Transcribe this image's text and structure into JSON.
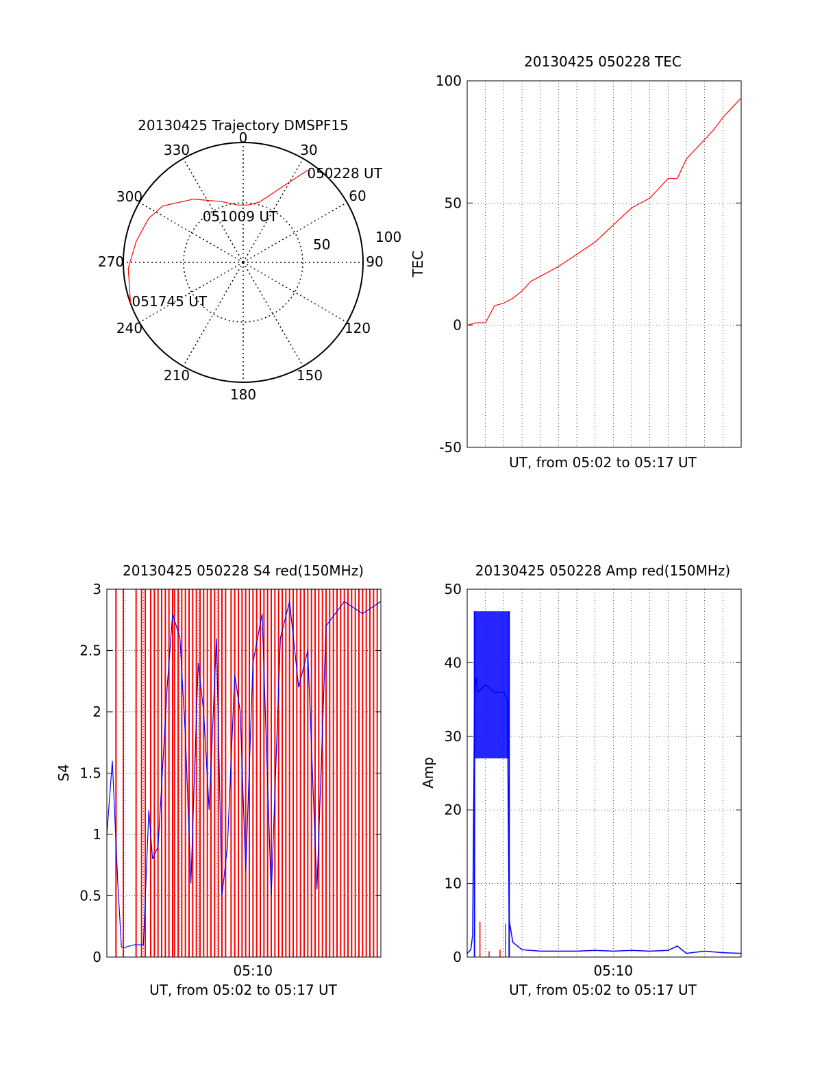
{
  "chart_data": [
    {
      "type": "polar-trajectory",
      "title": "20130425 Trajectory DMSPF15",
      "angle_labels": [
        "0",
        "30",
        "60",
        "90",
        "120",
        "150",
        "180",
        "210",
        "240",
        "270",
        "300",
        "330"
      ],
      "radial_labels": [
        "50",
        "100"
      ],
      "radial_max": 100,
      "track": {
        "color": "#ff0000",
        "points": [
          {
            "az": 35,
            "r": 94
          },
          {
            "az": 25,
            "r": 66
          },
          {
            "az": 15,
            "r": 52
          },
          {
            "az": 5,
            "r": 48
          },
          {
            "az": -5,
            "r": 48
          },
          {
            "az": -20,
            "r": 54
          },
          {
            "az": -38,
            "r": 67
          },
          {
            "az": -55,
            "r": 82
          },
          {
            "az": -65,
            "r": 87
          },
          {
            "az": -79,
            "r": 91
          },
          {
            "az": -93,
            "r": 96
          },
          {
            "az": -110,
            "r": 100
          }
        ]
      },
      "annotations": [
        {
          "text": "050228 UT",
          "az": 35,
          "r": 94
        },
        {
          "text": "051009 UT",
          "az": -3,
          "r": 47
        },
        {
          "text": "051745 UT",
          "az": -110,
          "r": 100
        }
      ]
    },
    {
      "type": "line",
      "title": "20130425 050228 TEC",
      "xlabel": "UT, from 05:02 to 05:17 UT",
      "ylabel": "TEC",
      "ylim": [
        -50,
        100
      ],
      "yticks": [
        "100",
        "50",
        "0",
        "-50"
      ],
      "xlim": [
        0,
        15
      ],
      "grid": true,
      "series": [
        {
          "color": "#ff0000",
          "x": [
            0,
            0.5,
            1.0,
            1.5,
            2,
            2.5,
            3,
            3.5,
            4,
            5,
            6,
            7,
            8,
            9,
            10,
            10.5,
            11,
            11.5,
            12,
            12.5,
            13,
            13.5,
            14,
            14.5,
            15
          ],
          "y": [
            0,
            1,
            1,
            8,
            9,
            11,
            14,
            18,
            20,
            24,
            29,
            34,
            41,
            48,
            52,
            56,
            60,
            60,
            68,
            72,
            76,
            80,
            85,
            89,
            93
          ]
        }
      ]
    },
    {
      "type": "line",
      "title": "20130425 050228 S4 red(150MHz)",
      "xlabel": "UT, from 05:02 to 05:17 UT",
      "ylabel": "S4",
      "ylim": [
        0,
        3
      ],
      "yticks": [
        "3",
        "2.5",
        "2",
        "1.5",
        "1",
        "0.5",
        "0"
      ],
      "xtick_labels": [
        {
          "x": 8,
          "label": "05:10"
        }
      ],
      "xlim": [
        0,
        15
      ],
      "grid": true,
      "series": [
        {
          "color": "#0000ff",
          "x": [
            0,
            0.3,
            0.6,
            0.8,
            1.0,
            1.5,
            2.0,
            2.3,
            2.5,
            2.8,
            3.0,
            3.3,
            3.6,
            4.0,
            4.3,
            4.6,
            5.0,
            5.3,
            5.6,
            6.0,
            6.3,
            6.6,
            7.0,
            7.3,
            7.6,
            8.0,
            8.5,
            9.0,
            9.5,
            10.0,
            10.5,
            11.0,
            11.5,
            12.0,
            13.0,
            14.0,
            15.0
          ],
          "y": [
            1.0,
            1.6,
            0.6,
            0.08,
            0.08,
            0.1,
            0.1,
            1.2,
            0.8,
            0.9,
            1.4,
            2.2,
            2.8,
            2.6,
            1.8,
            0.6,
            2.4,
            2.0,
            1.2,
            2.6,
            0.5,
            0.9,
            2.3,
            2.0,
            0.7,
            2.4,
            2.8,
            0.5,
            2.6,
            2.9,
            2.2,
            2.5,
            0.55,
            2.7,
            2.9,
            2.8,
            2.9
          ]
        }
      ],
      "red_spikes_x": [
        0.5,
        0.9,
        1.6,
        1.9,
        2.1,
        2.4,
        2.6,
        2.8,
        3.0,
        3.2,
        3.4,
        3.6,
        3.7,
        3.9,
        4.1,
        4.3,
        4.5,
        4.7,
        4.9,
        5.1,
        5.3,
        5.5,
        5.7,
        5.9,
        6.1,
        6.3,
        6.5,
        6.8,
        7.0,
        7.2,
        7.4,
        7.6,
        7.8,
        8.0,
        8.2,
        8.4,
        8.6,
        8.8,
        9.0,
        9.2,
        9.4,
        9.6,
        9.8,
        10.0,
        10.2,
        10.4,
        10.6,
        10.8,
        11.0,
        11.2,
        11.4,
        11.6,
        11.8,
        12.0,
        12.2,
        12.4,
        12.6,
        12.8,
        13.0,
        13.2,
        13.4,
        13.6,
        13.8,
        14.0,
        14.2,
        14.4,
        14.6,
        14.8
      ]
    },
    {
      "type": "line",
      "title": "20130425 050228 Amp red(150MHz)",
      "xlabel": "UT, from 05:02 to 05:17 UT",
      "ylabel": "Amp",
      "ylim": [
        0,
        50
      ],
      "yticks": [
        "50",
        "40",
        "30",
        "20",
        "10",
        "0"
      ],
      "xtick_labels": [
        {
          "x": 8,
          "label": "05:10"
        }
      ],
      "xlim": [
        0,
        15
      ],
      "grid": true,
      "series": [
        {
          "color": "#0000ff",
          "x": [
            0,
            0.2,
            0.3,
            0.4,
            0.5,
            0.6,
            1.0,
            1.5,
            2.0,
            2.2,
            2.3,
            2.5,
            3.0,
            4.0,
            5.0,
            6.0,
            7.0,
            8.0,
            9.0,
            10.0,
            11.0,
            11.5,
            12.0,
            13.0,
            14.0,
            15.0
          ],
          "y": [
            0.5,
            1.0,
            3.0,
            35.0,
            38.0,
            36.0,
            37.0,
            36.0,
            36.0,
            35.0,
            5.0,
            2.0,
            1.0,
            0.8,
            0.8,
            0.8,
            0.9,
            0.8,
            0.9,
            0.8,
            0.9,
            1.5,
            0.5,
            0.8,
            0.6,
            0.5
          ]
        }
      ],
      "blue_band": {
        "x_start": 0.4,
        "x_end": 2.3,
        "low": 27,
        "high": 47
      },
      "red_spikes": [
        {
          "x": 0.7,
          "y": 4.8
        },
        {
          "x": 2.1,
          "y": 4.5
        },
        {
          "x": 1.2,
          "y": 0.8
        },
        {
          "x": 1.8,
          "y": 1.0
        }
      ]
    }
  ]
}
